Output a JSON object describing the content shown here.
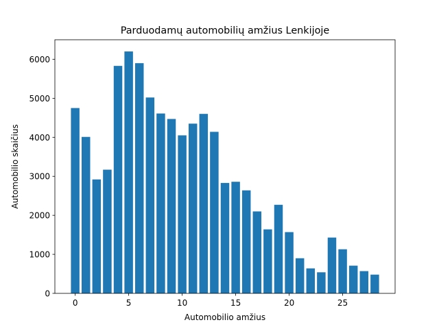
{
  "chart_data": {
    "type": "bar",
    "title": "Parduodamų automobilių amžius Lenkijoje",
    "xlabel": "Automobilio amžius",
    "ylabel": "Automobilio skaičius",
    "x": [
      0,
      1,
      2,
      3,
      4,
      5,
      6,
      7,
      8,
      9,
      10,
      11,
      12,
      13,
      14,
      15,
      16,
      17,
      18,
      19,
      20,
      21,
      22,
      23,
      24,
      25,
      26,
      27,
      28
    ],
    "values": [
      4750,
      4010,
      2920,
      3170,
      5830,
      6200,
      5900,
      5020,
      4610,
      4470,
      4050,
      4350,
      4600,
      4140,
      2830,
      2860,
      2640,
      2100,
      1640,
      2270,
      1570,
      900,
      640,
      540,
      1430,
      1130,
      710,
      570,
      480
    ],
    "xlim": [
      -1.9,
      29.9
    ],
    "ylim": [
      0,
      6500
    ],
    "xticks": [
      0,
      5,
      10,
      15,
      20,
      25
    ],
    "yticks": [
      0,
      1000,
      2000,
      3000,
      4000,
      5000,
      6000
    ],
    "bar_color": "#1f77b4",
    "grid": false,
    "legend": "none"
  }
}
